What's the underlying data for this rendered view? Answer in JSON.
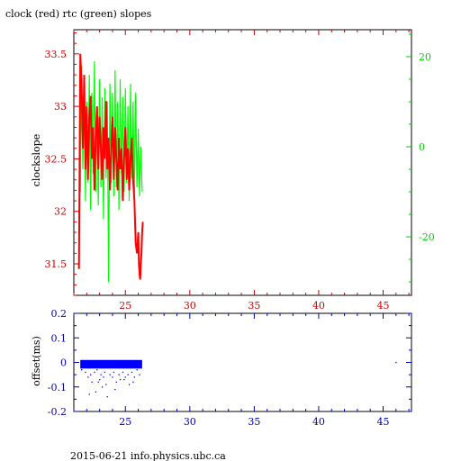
{
  "chart_data": [
    {
      "type": "line",
      "title": "clock (red) rtc (green) slopes",
      "xlabel": "",
      "ylabel": "clockslope",
      "xlim": [
        21.0,
        47.2
      ],
      "ylim": [
        31.2,
        33.73
      ],
      "x_ticks": [
        25,
        30,
        35,
        40,
        45
      ],
      "y_ticks": [
        31.5,
        32,
        32.5,
        33,
        33.5
      ],
      "y_tick_labels": [
        "31.5",
        "32",
        "32.5",
        "33",
        "33.5"
      ],
      "y2lim": [
        -33,
        26
      ],
      "y2_ticks": [
        -20,
        0,
        20
      ],
      "y2_tick_labels": [
        "-20",
        "0",
        "20"
      ],
      "axis_color_left": "#cc0000",
      "axis_color_right": "#00cc00",
      "axis_color_x": "#cc0000",
      "series": [
        {
          "name": "clock",
          "color": "#ff0000",
          "axis": "left",
          "x": [
            21.4,
            21.5,
            21.6,
            21.7,
            21.8,
            21.9,
            22.0,
            22.1,
            22.2,
            22.3,
            22.4,
            22.5,
            22.6,
            22.7,
            22.8,
            22.9,
            23.0,
            23.1,
            23.2,
            23.3,
            23.4,
            23.5,
            23.6,
            23.7,
            23.8,
            23.9,
            24.0,
            24.1,
            24.2,
            24.3,
            24.4,
            24.5,
            24.6,
            24.7,
            24.8,
            24.9,
            25.0,
            25.1,
            25.2,
            25.3,
            25.4,
            25.5,
            25.6,
            25.7,
            25.8,
            25.9,
            26.0,
            26.05,
            26.1,
            26.15,
            26.2,
            26.25,
            26.3,
            26.35
          ],
          "y": [
            31.45,
            33.5,
            33.2,
            32.6,
            33.3,
            32.4,
            33.0,
            32.3,
            32.9,
            33.1,
            32.5,
            32.8,
            32.2,
            32.7,
            33.0,
            32.4,
            32.9,
            32.6,
            32.3,
            32.8,
            32.5,
            33.05,
            32.4,
            32.7,
            32.2,
            32.6,
            32.9,
            32.3,
            32.8,
            32.5,
            32.2,
            32.7,
            32.4,
            32.6,
            32.1,
            32.5,
            32.8,
            32.3,
            32.6,
            32.2,
            32.5,
            32.7,
            32.3,
            32.1,
            31.7,
            31.6,
            31.8,
            31.5,
            31.4,
            31.35,
            31.5,
            31.6,
            31.8,
            31.9
          ]
        },
        {
          "name": "rtc",
          "color": "#00ff00",
          "axis": "right",
          "x": [
            21.5,
            21.6,
            21.7,
            21.8,
            21.9,
            22.0,
            22.1,
            22.2,
            22.3,
            22.4,
            22.5,
            22.6,
            22.7,
            22.8,
            22.9,
            23.0,
            23.1,
            23.2,
            23.3,
            23.4,
            23.5,
            23.6,
            23.7,
            23.8,
            23.9,
            24.0,
            24.1,
            24.2,
            24.3,
            24.4,
            24.5,
            24.6,
            24.7,
            24.8,
            24.9,
            25.0,
            25.1,
            25.2,
            25.3,
            25.4,
            25.5,
            25.6,
            25.7,
            25.8,
            25.9,
            26.0,
            26.1,
            26.2,
            26.3
          ],
          "y": [
            -10,
            18,
            -5,
            14,
            -12,
            10,
            -8,
            16,
            -14,
            12,
            -6,
            19,
            -10,
            8,
            -13,
            15,
            -9,
            11,
            -16,
            13,
            -7,
            10,
            -30,
            14,
            -8,
            12,
            -11,
            17,
            -9,
            10,
            -14,
            15,
            -6,
            11,
            -10,
            13,
            -8,
            9,
            -12,
            14,
            -7,
            10,
            -11,
            12,
            -9,
            4,
            -11,
            0,
            -10
          ]
        }
      ]
    },
    {
      "type": "scatter",
      "title": "",
      "xlabel": "",
      "ylabel": "offset(ms)",
      "xlim": [
        21.0,
        47.2
      ],
      "ylim": [
        -0.2,
        0.2
      ],
      "x_ticks": [
        25,
        30,
        35,
        40,
        45
      ],
      "y_ticks": [
        -0.2,
        -0.1,
        0,
        0.1,
        0.2
      ],
      "y_tick_labels": [
        "-0.2",
        "-0.1",
        "0",
        "0.1",
        "0.2"
      ],
      "axis_color": "#0000aa",
      "band": {
        "x_start": 21.5,
        "x_end": 26.3,
        "y_low": -0.025,
        "y_high": 0.01,
        "color": "#0000ff"
      },
      "series": [
        {
          "name": "offset",
          "color": "#0000ff",
          "x": [
            21.6,
            21.9,
            22.1,
            22.3,
            22.4,
            22.6,
            22.7,
            22.8,
            23.0,
            23.1,
            23.2,
            23.4,
            23.5,
            23.6,
            23.8,
            24.0,
            24.1,
            24.3,
            24.5,
            24.6,
            24.8,
            25.0,
            25.2,
            25.3,
            25.5,
            25.7,
            25.9,
            26.1,
            22.2,
            22.9,
            23.3,
            24.2,
            24.9,
            25.6,
            46.0
          ],
          "y": [
            -0.03,
            -0.04,
            -0.06,
            -0.05,
            -0.08,
            -0.04,
            -0.12,
            -0.03,
            -0.07,
            -0.05,
            -0.1,
            -0.04,
            -0.09,
            -0.14,
            -0.05,
            -0.06,
            -0.04,
            -0.08,
            -0.05,
            -0.07,
            -0.04,
            -0.06,
            -0.05,
            -0.09,
            -0.04,
            -0.06,
            -0.03,
            -0.05,
            -0.13,
            -0.08,
            -0.06,
            -0.11,
            -0.07,
            -0.08,
            0.0
          ]
        }
      ]
    }
  ],
  "footer": "2015-06-21 info.physics.ubc.ca"
}
